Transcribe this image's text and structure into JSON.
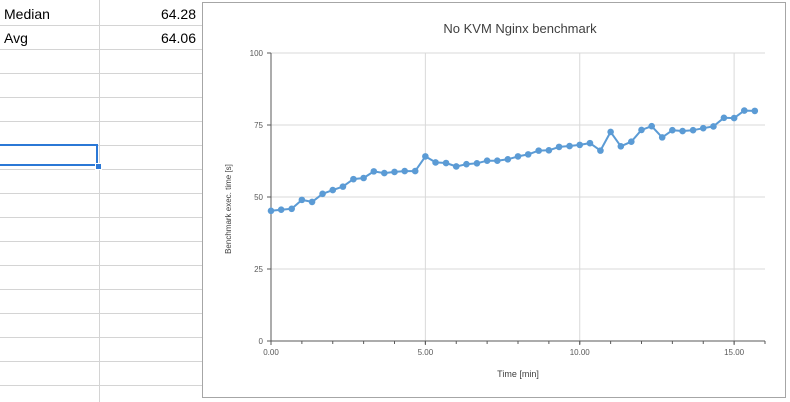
{
  "spreadsheet": {
    "rows": [
      {
        "label": "Median",
        "value": "64.28"
      },
      {
        "label": "Avg",
        "value": "64.06"
      }
    ],
    "gridline_color": "#d4d4d4",
    "selection_color": "#2b78d6"
  },
  "chart_data": {
    "type": "line",
    "title": "No KVM Nginx benchmark",
    "xlabel": "Time [min]",
    "ylabel": "Benchmark exec. time [s]",
    "xlim": [
      0,
      16
    ],
    "ylim": [
      0,
      100
    ],
    "x_ticks": [
      "0.00",
      "5.00",
      "10.00",
      "15.00"
    ],
    "y_ticks": [
      "0",
      "25",
      "50",
      "75",
      "100"
    ],
    "grid": true,
    "legend": "none",
    "series_color": "#5b9bd5",
    "x": [
      0,
      0.33,
      0.67,
      1,
      1.33,
      1.67,
      2,
      2.33,
      2.67,
      3,
      3.33,
      3.67,
      4,
      4.33,
      4.67,
      5,
      5.33,
      5.67,
      6,
      6.33,
      6.67,
      7,
      7.33,
      7.67,
      8,
      8.33,
      8.67,
      9,
      9.33,
      9.67,
      10,
      10.33,
      10.67,
      11,
      11.33,
      11.67,
      12,
      12.33,
      12.67,
      13,
      13.33,
      13.67,
      14,
      14.33,
      14.67,
      15,
      15.33,
      15.67
    ],
    "y": [
      45.2,
      45.6,
      45.9,
      49.0,
      48.3,
      51.1,
      52.4,
      53.6,
      56.2,
      56.6,
      58.9,
      58.3,
      58.7,
      59.0,
      59.0,
      64.1,
      62.0,
      61.8,
      60.6,
      61.4,
      61.7,
      62.6,
      62.6,
      63.1,
      64.1,
      64.8,
      66.1,
      66.2,
      67.4,
      67.7,
      68.1,
      68.7,
      66.1,
      72.6,
      67.6,
      69.2,
      73.3,
      74.6,
      70.7,
      73.2,
      72.9,
      73.2,
      73.9,
      74.5,
      77.5,
      77.4,
      80.0,
      79.9
    ]
  }
}
